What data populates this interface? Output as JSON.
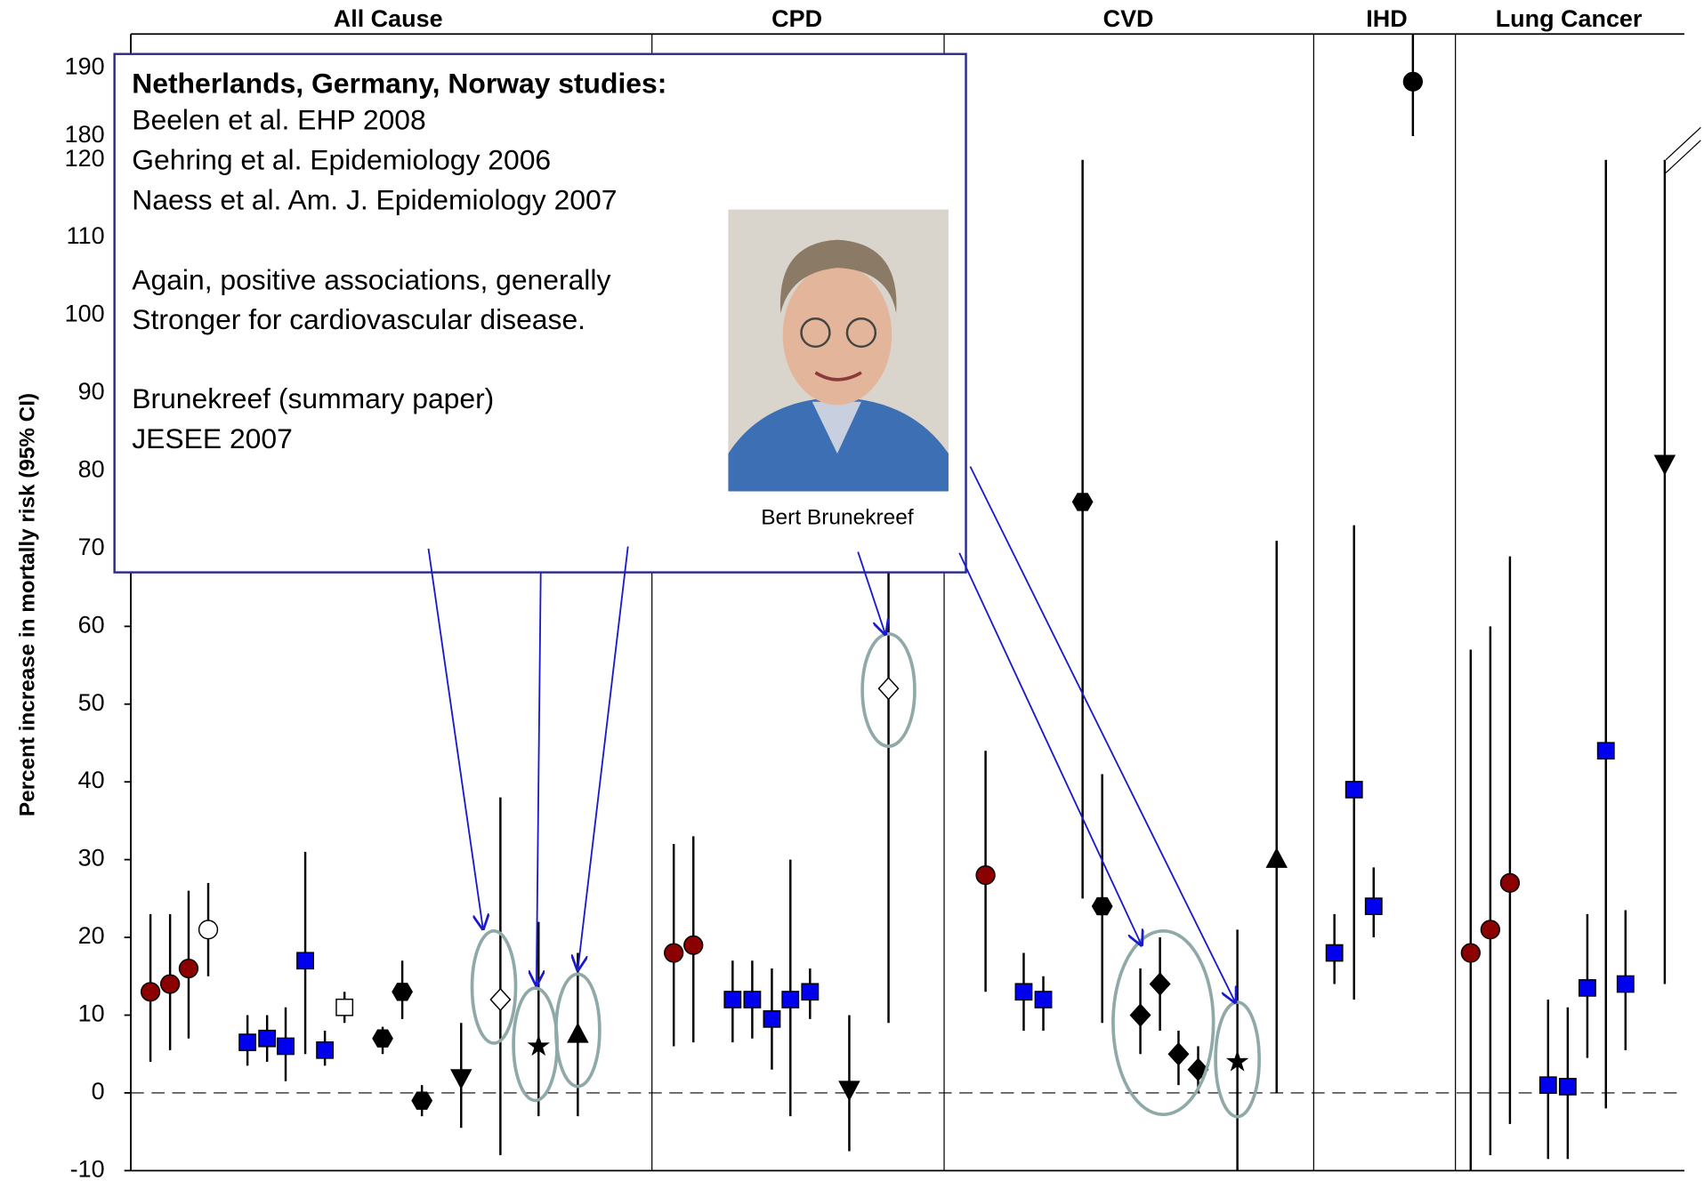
{
  "chart_data": {
    "type": "errorbar",
    "y_label": "Percent increase in mortally risk (95% CI)",
    "ylim": [
      -10,
      195
    ],
    "axis_break": [
      120,
      180
    ],
    "yticks": [
      -10,
      0,
      10,
      20,
      30,
      40,
      50,
      60,
      70,
      80,
      90,
      100,
      110,
      120,
      180,
      190
    ],
    "reference_line": 0,
    "panels": [
      {
        "name": "All Cause",
        "points": [
          {
            "marker": "circle",
            "color": "#8b0000",
            "value": 13,
            "low": 4,
            "high": 23
          },
          {
            "marker": "circle",
            "color": "#8b0000",
            "value": 14,
            "low": 5.5,
            "high": 23
          },
          {
            "marker": "circle",
            "color": "#8b0000",
            "value": 16,
            "low": 7,
            "high": 26
          },
          {
            "marker": "circle",
            "color": "#ffffff",
            "value": 21,
            "low": 15,
            "high": 27
          },
          {
            "marker": "square",
            "color": "#0000ee",
            "value": 6.5,
            "low": 3.5,
            "high": 10
          },
          {
            "marker": "square",
            "color": "#0000ee",
            "value": 7,
            "low": 4,
            "high": 10
          },
          {
            "marker": "square",
            "color": "#0000ee",
            "value": 6,
            "low": 1.5,
            "high": 11
          },
          {
            "marker": "square",
            "color": "#0000ee",
            "value": 17,
            "low": 5,
            "high": 31
          },
          {
            "marker": "square",
            "color": "#0000ee",
            "value": 5.5,
            "low": 3.5,
            "high": 8
          },
          {
            "marker": "square",
            "color": "#ffffff",
            "value": 11,
            "low": 9,
            "high": 13
          },
          {
            "marker": "hexagon",
            "color": "#000000",
            "value": 7,
            "low": 5,
            "high": 8.5
          },
          {
            "marker": "hexagon",
            "color": "#000000",
            "value": 13,
            "low": 9.5,
            "high": 17
          },
          {
            "marker": "hexagon",
            "color": "#000000",
            "value": -1,
            "low": -3,
            "high": 1
          },
          {
            "marker": "triangle-down",
            "color": "#000000",
            "value": 2,
            "low": -4.5,
            "high": 9
          },
          {
            "marker": "diamond",
            "color": "#ffffff",
            "value": 12,
            "low": -8,
            "high": 38
          },
          {
            "marker": "star",
            "color": "#000000",
            "value": 6,
            "low": -3,
            "high": 22
          },
          {
            "marker": "triangle-up",
            "color": "#000000",
            "value": 7.5,
            "low": -3,
            "high": 18
          }
        ]
      },
      {
        "name": "CPD",
        "points": [
          {
            "marker": "circle",
            "color": "#8b0000",
            "value": 18,
            "low": 6,
            "high": 32
          },
          {
            "marker": "circle",
            "color": "#8b0000",
            "value": 19,
            "low": 6.5,
            "high": 33
          },
          {
            "marker": "square",
            "color": "#0000ee",
            "value": 12,
            "low": 6.5,
            "high": 17
          },
          {
            "marker": "square",
            "color": "#0000ee",
            "value": 12,
            "low": 7,
            "high": 17
          },
          {
            "marker": "square",
            "color": "#0000ee",
            "value": 9.5,
            "low": 3,
            "high": 16
          },
          {
            "marker": "square",
            "color": "#0000ee",
            "value": 12,
            "low": -3,
            "high": 30
          },
          {
            "marker": "square",
            "color": "#0000ee",
            "value": 13,
            "low": 9.5,
            "high": 16
          },
          {
            "marker": "triangle-down",
            "color": "#000000",
            "value": 0.5,
            "low": -7.5,
            "high": 10
          },
          {
            "marker": "diamond",
            "color": "#ffffff",
            "value": 52,
            "low": 9,
            "high": 90
          }
        ]
      },
      {
        "name": "CVD",
        "points": [
          {
            "marker": "circle",
            "color": "#8b0000",
            "value": 28,
            "low": 13,
            "high": 44
          },
          {
            "marker": "square",
            "color": "#0000ee",
            "value": 13,
            "low": 8,
            "high": 18
          },
          {
            "marker": "square",
            "color": "#0000ee",
            "value": 12,
            "low": 8,
            "high": 15
          },
          {
            "marker": "hexagon",
            "color": "#000000",
            "value": 76,
            "low": 25,
            "high": 120
          },
          {
            "marker": "hexagon",
            "color": "#000000",
            "value": 24,
            "low": 9,
            "high": 41
          },
          {
            "marker": "diamond",
            "color": "#000000",
            "value": 10,
            "low": 5,
            "high": 16
          },
          {
            "marker": "diamond",
            "color": "#000000",
            "value": 14,
            "low": 8,
            "high": 20
          },
          {
            "marker": "diamond",
            "color": "#000000",
            "value": 5,
            "low": 1,
            "high": 8
          },
          {
            "marker": "diamond",
            "color": "#000000",
            "value": 3,
            "low": 0,
            "high": 6
          },
          {
            "marker": "star",
            "color": "#000000",
            "value": 4,
            "low": -10,
            "high": 21
          },
          {
            "marker": "triangle-up",
            "color": "#000000",
            "value": 30,
            "low": 0,
            "high": 71
          }
        ]
      },
      {
        "name": "IHD",
        "points": [
          {
            "marker": "square",
            "color": "#0000ee",
            "value": 18,
            "low": 14,
            "high": 23
          },
          {
            "marker": "square",
            "color": "#0000ee",
            "value": 39,
            "low": 12,
            "high": 73
          },
          {
            "marker": "square",
            "color": "#0000ee",
            "value": 24,
            "low": 20,
            "high": 29
          },
          {
            "marker": "circle",
            "color": "#000000",
            "value": 188,
            "low": 180,
            "high": 195
          }
        ]
      },
      {
        "name": "Lung Cancer",
        "points": [
          {
            "marker": "circle",
            "color": "#8b0000",
            "value": 18,
            "low": -10,
            "high": 57
          },
          {
            "marker": "circle",
            "color": "#8b0000",
            "value": 21,
            "low": -8,
            "high": 60
          },
          {
            "marker": "circle",
            "color": "#8b0000",
            "value": 27,
            "low": -4,
            "high": 69
          },
          {
            "marker": "square",
            "color": "#0000ee",
            "value": 1,
            "low": -8.5,
            "high": 12
          },
          {
            "marker": "square",
            "color": "#0000ee",
            "value": 0.8,
            "low": -8.5,
            "high": 11
          },
          {
            "marker": "square",
            "color": "#0000ee",
            "value": 13.5,
            "low": 4.5,
            "high": 23
          },
          {
            "marker": "square",
            "color": "#0000ee",
            "value": 44,
            "low": -2,
            "high": 120
          },
          {
            "marker": "square",
            "color": "#0000ee",
            "value": 14,
            "low": 5.5,
            "high": 23.5
          },
          {
            "marker": "triangle-down",
            "color": "#000000",
            "value": 81,
            "low": 14,
            "high": 120
          }
        ]
      }
    ],
    "annotation": {
      "heading": "Netherlands, Germany, Norway studies:",
      "lines": [
        "Beelen et al. EHP 2008",
        "Gehring et al. Epidemiology 2006",
        "Naess et al. Am. J. Epidemiology 2007",
        "Again, positive associations, generally",
        "Stronger  for cardiovascular disease.",
        "Brunekreef (summary paper)",
        "JESEE 2007"
      ],
      "photo_caption": "Bert Brunekreef"
    }
  }
}
